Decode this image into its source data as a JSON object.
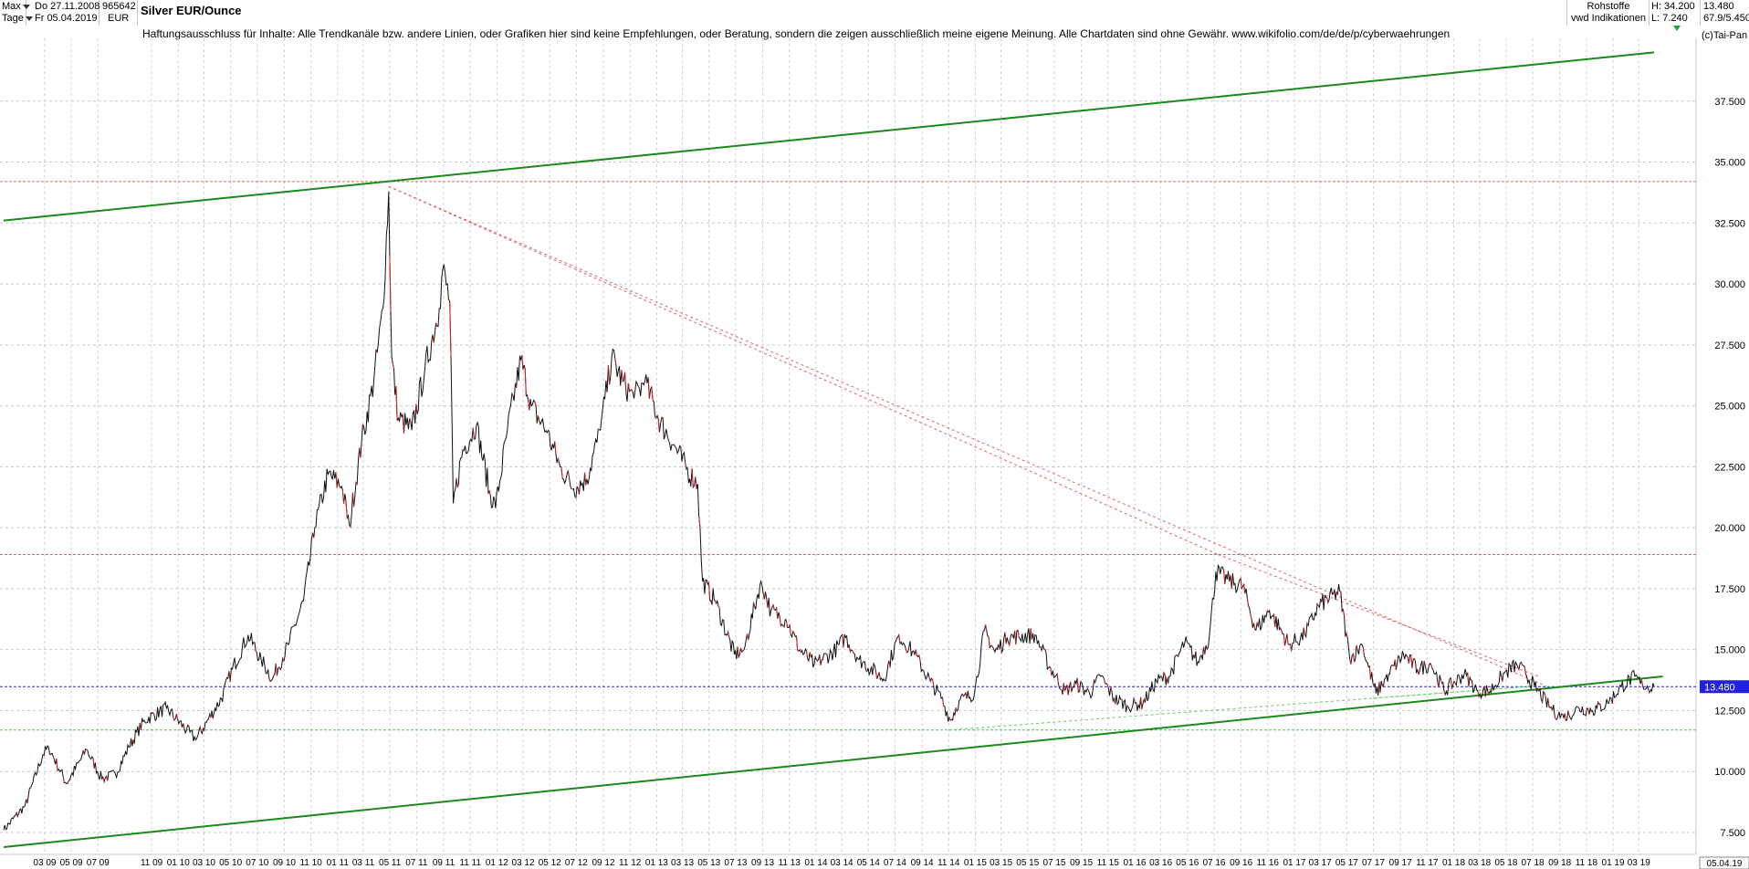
{
  "header": {
    "period_select": "Max",
    "interval_select": "Tage",
    "date_from": "Do 27.11.2008",
    "date_to": "Fr 05.04.2019",
    "wkn": "965642",
    "currency": "EUR",
    "title": "Silver EUR/Ounce",
    "disclaimer": "Haftungsausschluss für Inhalte: Alle Trendkanäle bzw. andere Linien, oder Grafiken hier sind keine Empfehlungen, oder Beratung, sondern die zeigen ausschließlich meine eigene Meinung. Alle Chartdaten sind ohne Gewähr.  www.wikifolio.com/de/de/p/cyberwaehrungen",
    "category": "Rohstoffe",
    "source": "vwd Indikationen",
    "high": "H: 34.200",
    "low": "L: 7.240",
    "last": "13.480",
    "change": "67.9/5.450",
    "copyright": "(c)Tai-Pan"
  },
  "chart_data": {
    "type": "line",
    "title": "Silver EUR/Ounce",
    "x_axis_labels": [
      "03 09",
      "05 09",
      "07 09",
      "11 09",
      "01 10",
      "03 10",
      "05 10",
      "07 10",
      "09 10",
      "11 10",
      "01 11",
      "03 11",
      "05 11",
      "07 11",
      "09 11",
      "11 11",
      "01 12",
      "03 12",
      "05 12",
      "07 12",
      "09 12",
      "11 12",
      "01 13",
      "03 13",
      "05 13",
      "07 13",
      "09 13",
      "11 13",
      "01 14",
      "03 14",
      "05 14",
      "07 14",
      "09 14",
      "11 14",
      "01 15",
      "03 15",
      "05 15",
      "07 15",
      "09 15",
      "11 15",
      "01 16",
      "03 16",
      "05 16",
      "07 16",
      "09 16",
      "11 16",
      "01 17",
      "03 17",
      "05 17",
      "07 17",
      "09 17",
      "11 17",
      "01 18",
      "03 18",
      "05 18",
      "07 18",
      "09 18",
      "11 18",
      "01 19",
      "03 19"
    ],
    "last_date_label": "05.04.19",
    "y_ticks": [
      "7.500",
      "10.000",
      "12.500",
      "15.000",
      "17.500",
      "20.000",
      "22.500",
      "25.000",
      "27.500",
      "30.000",
      "32.500",
      "35.000",
      "37.500"
    ],
    "y_range": [
      6.6,
      40.0
    ],
    "grid": true,
    "last_value_label": "13.480",
    "series": [
      {
        "values": [
          [
            "2008-11-27",
            7.6
          ],
          [
            "2009-01-15",
            8.6
          ],
          [
            "2009-02-25",
            10.7
          ],
          [
            "2009-03-10",
            11.0
          ],
          [
            "2009-04-20",
            9.5
          ],
          [
            "2009-06-05",
            10.9
          ],
          [
            "2009-07-10",
            9.7
          ],
          [
            "2009-08-10",
            9.9
          ],
          [
            "2009-09-10",
            11.0
          ],
          [
            "2009-10-15",
            12.1
          ],
          [
            "2009-12-05",
            12.6
          ],
          [
            "2010-01-20",
            11.7
          ],
          [
            "2010-02-10",
            11.3
          ],
          [
            "2010-04-10",
            13.0
          ],
          [
            "2010-05-05",
            14.2
          ],
          [
            "2010-06-10",
            15.6
          ],
          [
            "2010-07-10",
            14.6
          ],
          [
            "2010-08-05",
            13.8
          ],
          [
            "2010-09-10",
            15.2
          ],
          [
            "2010-10-15",
            17.0
          ],
          [
            "2010-11-10",
            20.0
          ],
          [
            "2010-12-10",
            22.2
          ],
          [
            "2011-01-10",
            21.7
          ],
          [
            "2011-01-28",
            20.1
          ],
          [
            "2011-02-25",
            23.5
          ],
          [
            "2011-03-25",
            26.0
          ],
          [
            "2011-04-15",
            29.0
          ],
          [
            "2011-04-28",
            33.8
          ],
          [
            "2011-05-05",
            27.0
          ],
          [
            "2011-05-20",
            24.5
          ],
          [
            "2011-06-20",
            24.0
          ],
          [
            "2011-07-20",
            26.5
          ],
          [
            "2011-08-22",
            29.0
          ],
          [
            "2011-08-30",
            30.6
          ],
          [
            "2011-09-15",
            29.3
          ],
          [
            "2011-09-23",
            21.0
          ],
          [
            "2011-10-15",
            23.2
          ],
          [
            "2011-11-15",
            24.2
          ],
          [
            "2011-12-15",
            21.5
          ],
          [
            "2011-12-29",
            20.8
          ],
          [
            "2012-01-25",
            24.0
          ],
          [
            "2012-02-25",
            26.9
          ],
          [
            "2012-03-20",
            25.0
          ],
          [
            "2012-04-25",
            23.9
          ],
          [
            "2012-05-25",
            22.5
          ],
          [
            "2012-06-25",
            21.6
          ],
          [
            "2012-07-25",
            22.0
          ],
          [
            "2012-08-25",
            24.0
          ],
          [
            "2012-09-20",
            27.0
          ],
          [
            "2012-10-15",
            26.0
          ],
          [
            "2012-11-10",
            25.3
          ],
          [
            "2012-12-05",
            26.0
          ],
          [
            "2013-01-10",
            24.3
          ],
          [
            "2013-02-10",
            23.4
          ],
          [
            "2013-03-10",
            22.4
          ],
          [
            "2013-04-05",
            21.8
          ],
          [
            "2013-04-16",
            17.8
          ],
          [
            "2013-05-15",
            17.0
          ],
          [
            "2013-06-28",
            14.8
          ],
          [
            "2013-07-20",
            15.0
          ],
          [
            "2013-08-28",
            17.8
          ],
          [
            "2013-09-20",
            16.6
          ],
          [
            "2013-10-25",
            16.2
          ],
          [
            "2013-11-25",
            15.0
          ],
          [
            "2013-12-28",
            14.4
          ],
          [
            "2014-02-10",
            14.9
          ],
          [
            "2014-03-10",
            15.5
          ],
          [
            "2014-04-10",
            14.6
          ],
          [
            "2014-06-05",
            13.8
          ],
          [
            "2014-07-10",
            15.6
          ],
          [
            "2014-08-15",
            14.8
          ],
          [
            "2014-09-20",
            13.7
          ],
          [
            "2014-10-15",
            13.0
          ],
          [
            "2014-11-05",
            12.1
          ],
          [
            "2014-11-25",
            12.9
          ],
          [
            "2014-12-30",
            13.2
          ],
          [
            "2015-01-22",
            15.8
          ],
          [
            "2015-02-15",
            14.9
          ],
          [
            "2015-03-15",
            15.5
          ],
          [
            "2015-05-18",
            15.6
          ],
          [
            "2015-06-20",
            14.3
          ],
          [
            "2015-07-25",
            13.3
          ],
          [
            "2015-08-20",
            13.6
          ],
          [
            "2015-09-20",
            13.2
          ],
          [
            "2015-10-15",
            13.9
          ],
          [
            "2015-11-15",
            13.0
          ],
          [
            "2015-12-15",
            12.7
          ],
          [
            "2016-01-20",
            12.8
          ],
          [
            "2016-02-20",
            13.7
          ],
          [
            "2016-03-20",
            13.9
          ],
          [
            "2016-04-25",
            15.3
          ],
          [
            "2016-05-25",
            14.5
          ],
          [
            "2016-06-20",
            15.5
          ],
          [
            "2016-07-05",
            18.2
          ],
          [
            "2016-08-05",
            17.8
          ],
          [
            "2016-09-05",
            17.6
          ],
          [
            "2016-10-05",
            15.8
          ],
          [
            "2016-11-05",
            16.6
          ],
          [
            "2016-12-20",
            15.2
          ],
          [
            "2017-01-25",
            15.6
          ],
          [
            "2017-02-25",
            16.8
          ],
          [
            "2017-04-15",
            17.4
          ],
          [
            "2017-05-08",
            14.6
          ],
          [
            "2017-06-05",
            15.2
          ],
          [
            "2017-07-07",
            13.2
          ],
          [
            "2017-08-05",
            14.0
          ],
          [
            "2017-09-08",
            14.8
          ],
          [
            "2017-10-10",
            14.2
          ],
          [
            "2017-11-10",
            14.4
          ],
          [
            "2017-12-10",
            13.3
          ],
          [
            "2018-01-25",
            14.0
          ],
          [
            "2018-02-25",
            13.3
          ],
          [
            "2018-03-25",
            13.3
          ],
          [
            "2018-04-20",
            13.9
          ],
          [
            "2018-05-25",
            14.4
          ],
          [
            "2018-06-15",
            14.0
          ],
          [
            "2018-07-05",
            13.5
          ],
          [
            "2018-08-15",
            12.5
          ],
          [
            "2018-09-10",
            12.2
          ],
          [
            "2018-10-15",
            12.6
          ],
          [
            "2018-11-15",
            12.5
          ],
          [
            "2018-12-20",
            12.8
          ],
          [
            "2019-01-20",
            13.5
          ],
          [
            "2019-02-20",
            13.9
          ],
          [
            "2019-03-10",
            13.5
          ],
          [
            "2019-04-05",
            13.48
          ]
        ]
      }
    ],
    "trend_lines": [
      {
        "color": "#1a8a1a",
        "from": [
          "2008-11-27",
          32.6
        ],
        "to": [
          "2019-04-05",
          39.5
        ]
      },
      {
        "color": "#1a8a1a",
        "from": [
          "2008-11-27",
          6.9
        ],
        "to": [
          "2019-04-25",
          13.9
        ]
      },
      {
        "color": "#66cc66",
        "style": "dotted",
        "from": [
          "2014-11-01",
          11.7
        ],
        "to": [
          "2018-07-01",
          13.5
        ]
      },
      {
        "color": "#66cc66",
        "style": "dotted",
        "from": [
          "2017-07-01",
          13.0
        ],
        "to": [
          "2018-07-01",
          13.5
        ]
      },
      {
        "color": "#e06666",
        "style": "dotted",
        "from": [
          "2011-04-28",
          34.0
        ],
        "to": [
          "2018-08-01",
          13.5
        ]
      },
      {
        "color": "#e06666",
        "style": "dotted",
        "from": [
          "2011-04-28",
          34.0
        ],
        "to": [
          "2016-07-10",
          18.9
        ]
      },
      {
        "color": "#e06666",
        "style": "dotted",
        "from": [
          "2016-07-10",
          18.9
        ],
        "to": [
          "2018-07-15",
          13.9
        ]
      }
    ],
    "horizontal_lines": [
      {
        "color": "#e06666",
        "value": 34.2
      },
      {
        "color": "#e06666",
        "value": 18.9
      },
      {
        "color": "#2222dd",
        "value": 13.48
      },
      {
        "color": "#44cc44",
        "value": 11.7
      }
    ]
  }
}
